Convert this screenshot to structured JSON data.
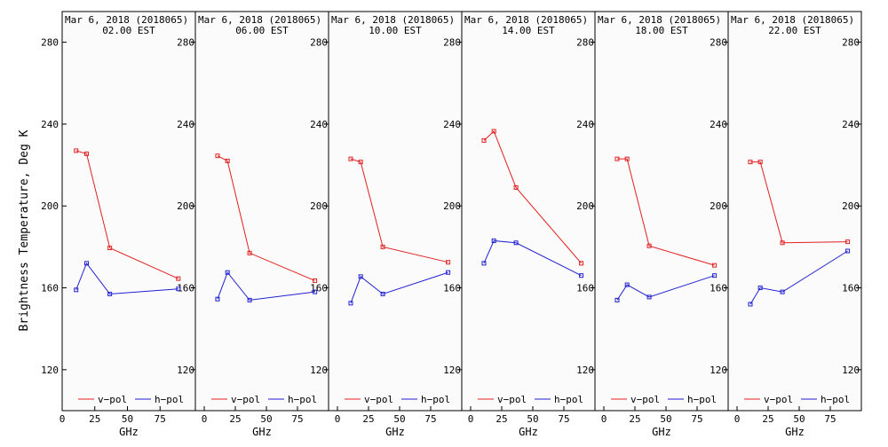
{
  "figure": {
    "ylabel": "Brightness Temperature, Deg K",
    "xlabel": "GHz"
  },
  "legend": {
    "vpol": "v−pol",
    "hpol": "h−pol"
  },
  "colors": {
    "vpol": "#e02020",
    "hpol": "#2020d0",
    "axes": "#000000",
    "panel_background": "#fbfbfb"
  },
  "chart_data": [
    {
      "type": "line",
      "title": "Mar  6, 2018 (2018065)",
      "subtitle": "02.00 EST",
      "xlabel": "GHz",
      "ylabel": "Brightness Temperature, Deg K",
      "xlim": [
        0,
        100
      ],
      "ylim": [
        100,
        295
      ],
      "x_ticks": [
        0,
        25,
        50,
        75
      ],
      "y_ticks": [
        120,
        160,
        200,
        240,
        280
      ],
      "grid": false,
      "legend_position": "bottom",
      "series": [
        {
          "name": "v−pol",
          "x": [
            10.7,
            18.7,
            36.5,
            89.0
          ],
          "y": [
            227,
            225.5,
            179.5,
            164.5
          ]
        },
        {
          "name": "h−pol",
          "x": [
            10.7,
            18.7,
            36.5,
            89.0
          ],
          "y": [
            159,
            172,
            157,
            159.5
          ]
        }
      ]
    },
    {
      "type": "line",
      "title": "Mar  6, 2018 (2018065)",
      "subtitle": "06.00 EST",
      "xlabel": "GHz",
      "ylabel": "",
      "xlim": [
        0,
        100
      ],
      "ylim": [
        100,
        295
      ],
      "x_ticks": [
        0,
        25,
        50,
        75
      ],
      "y_ticks": [
        120,
        160,
        200,
        240,
        280
      ],
      "grid": false,
      "legend_position": "bottom",
      "series": [
        {
          "name": "v−pol",
          "x": [
            10.7,
            18.7,
            36.5,
            89.0
          ],
          "y": [
            224.5,
            222,
            177,
            163.5
          ]
        },
        {
          "name": "h−pol",
          "x": [
            10.7,
            18.7,
            36.5,
            89.0
          ],
          "y": [
            154.5,
            167.5,
            154,
            158
          ]
        }
      ]
    },
    {
      "type": "line",
      "title": "Mar  6, 2018 (2018065)",
      "subtitle": "10.00 EST",
      "xlabel": "GHz",
      "ylabel": "",
      "xlim": [
        0,
        100
      ],
      "ylim": [
        100,
        295
      ],
      "x_ticks": [
        0,
        25,
        50,
        75
      ],
      "y_ticks": [
        120,
        160,
        200,
        240,
        280
      ],
      "grid": false,
      "legend_position": "bottom",
      "series": [
        {
          "name": "v−pol",
          "x": [
            10.7,
            18.7,
            36.5,
            89.0
          ],
          "y": [
            223,
            221.5,
            180,
            172.5
          ]
        },
        {
          "name": "h−pol",
          "x": [
            10.7,
            18.7,
            36.5,
            89.0
          ],
          "y": [
            152.5,
            165.5,
            157,
            167.5
          ]
        }
      ]
    },
    {
      "type": "line",
      "title": "Mar  6, 2018 (2018065)",
      "subtitle": "14.00 EST",
      "xlabel": "GHz",
      "ylabel": "",
      "xlim": [
        0,
        100
      ],
      "ylim": [
        100,
        295
      ],
      "x_ticks": [
        0,
        25,
        50,
        75
      ],
      "y_ticks": [
        120,
        160,
        200,
        240,
        280
      ],
      "grid": false,
      "legend_position": "bottom",
      "series": [
        {
          "name": "v−pol",
          "x": [
            10.7,
            18.7,
            36.5,
            89.0
          ],
          "y": [
            232,
            236.5,
            209,
            172
          ]
        },
        {
          "name": "h−pol",
          "x": [
            10.7,
            18.7,
            36.5,
            89.0
          ],
          "y": [
            172,
            183,
            182,
            166
          ]
        }
      ]
    },
    {
      "type": "line",
      "title": "Mar  6, 2018 (2018065)",
      "subtitle": "18.00 EST",
      "xlabel": "GHz",
      "ylabel": "",
      "xlim": [
        0,
        100
      ],
      "ylim": [
        100,
        295
      ],
      "x_ticks": [
        0,
        25,
        50,
        75
      ],
      "y_ticks": [
        120,
        160,
        200,
        240,
        280
      ],
      "grid": false,
      "legend_position": "bottom",
      "series": [
        {
          "name": "v−pol",
          "x": [
            10.7,
            18.7,
            36.5,
            89.0
          ],
          "y": [
            223,
            223,
            180.5,
            171
          ]
        },
        {
          "name": "h−pol",
          "x": [
            10.7,
            18.7,
            36.5,
            89.0
          ],
          "y": [
            154,
            161.5,
            155.5,
            166
          ]
        }
      ]
    },
    {
      "type": "line",
      "title": "Mar  6, 2018 (2018065)",
      "subtitle": "22.00 EST",
      "xlabel": "GHz",
      "ylabel": "",
      "xlim": [
        0,
        100
      ],
      "ylim": [
        100,
        295
      ],
      "x_ticks": [
        0,
        25,
        50,
        75
      ],
      "y_ticks": [
        120,
        160,
        200,
        240,
        280
      ],
      "grid": false,
      "legend_position": "bottom",
      "series": [
        {
          "name": "v−pol",
          "x": [
            10.7,
            18.7,
            36.5,
            89.0
          ],
          "y": [
            221.5,
            221.5,
            182,
            182.5
          ]
        },
        {
          "name": "h−pol",
          "x": [
            10.7,
            18.7,
            36.5,
            89.0
          ],
          "y": [
            152,
            160,
            158,
            178
          ]
        }
      ]
    }
  ]
}
